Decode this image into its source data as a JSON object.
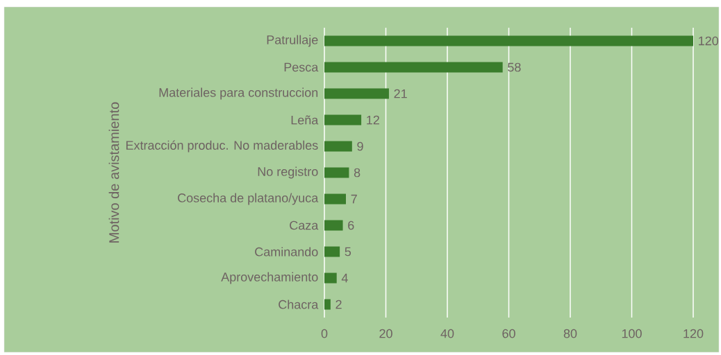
{
  "chart_data": {
    "type": "bar",
    "orientation": "horizontal",
    "ylabel": "Motivo de avistamiento",
    "categories": [
      "Patrullaje",
      "Pesca",
      "Materiales para construccion",
      "Leña",
      "Extracción produc. No maderables",
      "No registro",
      "Cosecha de platano/yuca",
      "Caza",
      "Caminando",
      "Aprovechamiento",
      "Chacra"
    ],
    "values": [
      120,
      58,
      21,
      12,
      9,
      8,
      7,
      6,
      5,
      4,
      2
    ],
    "color": "#3a7d2c",
    "xlim": [
      0,
      120
    ],
    "xticks": [
      0,
      20,
      40,
      60,
      80,
      100,
      120
    ],
    "grid": "x",
    "data_labels": true
  }
}
